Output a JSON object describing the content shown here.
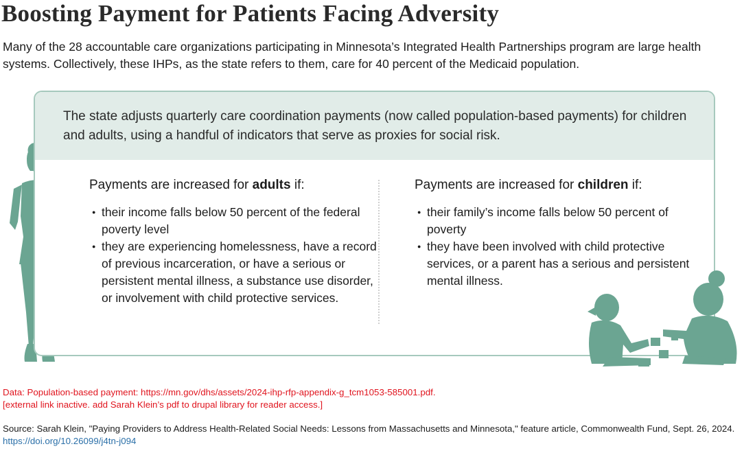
{
  "title": "Boosting Payment for Patients Facing Adversity",
  "intro": "Many of the 28 accountable care organizations participating in Minnesota’s Integrated Health Partnerships program are large health systems. Collectively, these IHPs, as the state refers to them, care for 40 percent of the Medicaid population.",
  "box": {
    "header": "The state adjusts quarterly care coordination payments (now called population-based payments) for children and adults, using a handful of indicators that serve as proxies for social risk.",
    "adults": {
      "prefix": "Payments are increased for ",
      "group": "adults",
      "suffix": " if:",
      "bullets": [
        "their income falls below 50 percent of the federal poverty level",
        "they are experiencing homelessness, have a record of previous incarceration, or have a serious or persistent mental illness, a substance use disorder, or involvement with child protective services."
      ]
    },
    "children": {
      "prefix": "Payments are increased for ",
      "group": "children",
      "suffix": " if:",
      "bullets": [
        "their family’s income falls below 50 percent of poverty",
        "they have been involved with child protective services, or a parent has a serious and persistent mental illness."
      ]
    }
  },
  "data_note": {
    "line1": "Data: Population-based payment: https://mn.gov/dhs/assets/2024-ihp-rfp-appendix-g_tcm1053-585001.pdf.",
    "line2": "[external link inactive. add Sarah Klein’s pdf to drupal library for reader access.]"
  },
  "source": {
    "text": "Source: Sarah Klein, \"Paying Providers to Address Health-Related Social Needs: Lessons from Massachusetts and Minnesota,\" feature article, Commonwealth Fund, Sept. 26, 2024. ",
    "link": "https://doi.org/10.26099/j4tn-j094"
  },
  "colors": {
    "illustration": "#6ba592",
    "box_header_bg": "#e1ece8",
    "box_border": "#a6c9bd",
    "note_red": "#e0141e",
    "link_blue": "#2a6fa8"
  }
}
